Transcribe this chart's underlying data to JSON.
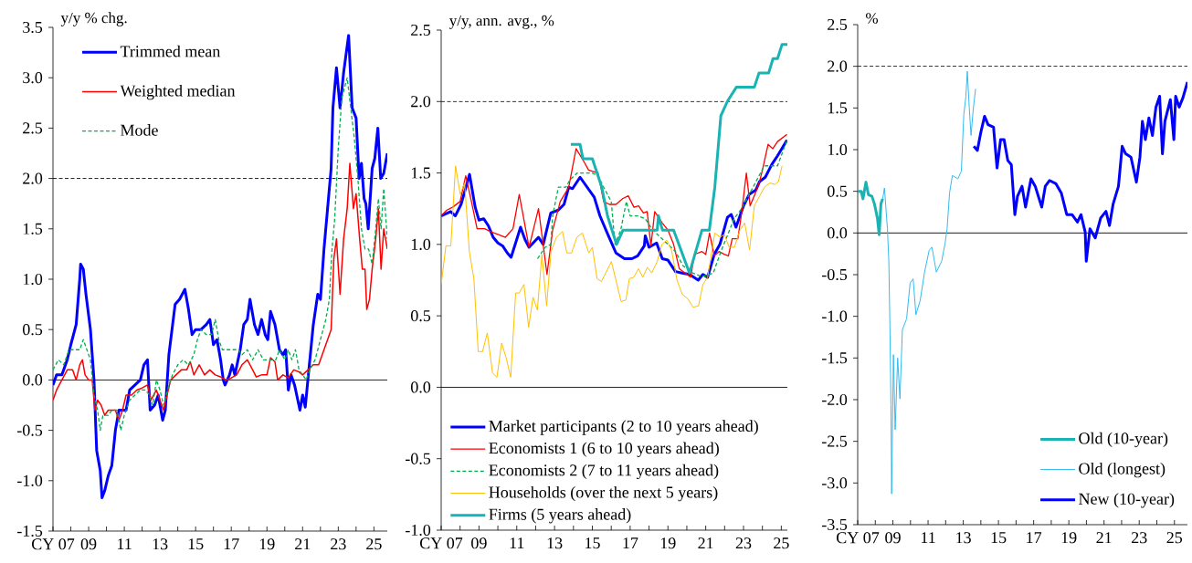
{
  "chart_data": [
    {
      "type": "line",
      "ylabel": "y/y % chg.",
      "legend": "top left",
      "xlim": [
        2007,
        2025.75
      ],
      "xticks": [
        {
          "value": 2007,
          "label": "CY 07"
        },
        {
          "value": 2008,
          "label": null
        },
        {
          "value": 2009,
          "label": "09"
        },
        {
          "value": 2010,
          "label": null
        },
        {
          "value": 2011,
          "label": "11"
        },
        {
          "value": 2012,
          "label": null
        },
        {
          "value": 2013,
          "label": "13"
        },
        {
          "value": 2014,
          "label": null
        },
        {
          "value": 2015,
          "label": "15"
        },
        {
          "value": 2016,
          "label": null
        },
        {
          "value": 2017,
          "label": "17"
        },
        {
          "value": 2018,
          "label": null
        },
        {
          "value": 2019,
          "label": "19"
        },
        {
          "value": 2020,
          "label": null
        },
        {
          "value": 2021,
          "label": "21"
        },
        {
          "value": 2022,
          "label": null
        },
        {
          "value": 2023,
          "label": "23"
        },
        {
          "value": 2024,
          "label": null
        },
        {
          "value": 2025,
          "label": "25"
        }
      ],
      "ylim": [
        -1.5,
        3.5
      ],
      "yticks": [
        {
          "value": -1.5,
          "label": "-1.5"
        },
        {
          "value": -1,
          "label": "-1.0"
        },
        {
          "value": -0.5,
          "label": "-0.5"
        },
        {
          "value": 0,
          "label": "0.0"
        },
        0.5,
        {
          "value": 1,
          "label": "1.0"
        },
        1.5,
        {
          "value": 2,
          "label": "2.0"
        },
        2.5,
        {
          "value": 3,
          "label": "3.0"
        },
        3.5
      ],
      "ref_lines": [
        {
          "axis": "y",
          "value": 2,
          "color": "#000000",
          "line_style": "dashed"
        },
        {
          "axis": "y",
          "value": 0,
          "color": "#000000"
        }
      ],
      "series": [
        {
          "name": "Trimmed mean",
          "color": "#0000ff",
          "x": [
            2007.0,
            2007.2,
            2007.5,
            2007.8,
            2008.0,
            2008.3,
            2008.5,
            2008.55,
            2008.7,
            2008.85,
            2009.1,
            2009.3,
            2009.45,
            2009.65,
            2009.75,
            2009.9,
            2010.1,
            2010.3,
            2010.5,
            2010.7,
            2010.9,
            2011.1,
            2011.3,
            2011.6,
            2011.9,
            2012.1,
            2012.3,
            2012.45,
            2012.7,
            2012.9,
            2013.15,
            2013.3,
            2013.5,
            2013.85,
            2014.1,
            2014.4,
            2014.6,
            2014.8,
            2015.0,
            2015.3,
            2015.6,
            2015.8,
            2016.0,
            2016.2,
            2016.4,
            2016.55,
            2016.65,
            2016.9,
            2017.05,
            2017.2,
            2017.5,
            2017.7,
            2017.9,
            2018.05,
            2018.3,
            2018.5,
            2018.7,
            2018.9,
            2019.05,
            2019.2,
            2019.45,
            2019.7,
            2019.9,
            2020.05,
            2020.2,
            2020.35,
            2020.55,
            2020.85,
            2021.0,
            2021.15,
            2021.35,
            2021.6,
            2021.85,
            2022.0,
            2022.2,
            2022.45,
            2022.6,
            2022.7,
            2022.9,
            2023.1,
            2023.3,
            2023.45,
            2023.58,
            2023.78,
            2024.0,
            2024.17,
            2024.3,
            2024.45,
            2024.55,
            2024.68,
            2024.9,
            2025.05,
            2025.22,
            2025.38,
            2025.55,
            2025.75
          ],
          "values": [
            -0.05,
            0.05,
            0.05,
            0.2,
            0.35,
            0.55,
            1.0,
            1.15,
            1.1,
            0.85,
            0.5,
            0.0,
            -0.7,
            -0.9,
            -1.17,
            -1.1,
            -0.95,
            -0.85,
            -0.5,
            -0.3,
            -0.3,
            -0.3,
            -0.1,
            -0.05,
            0.0,
            0.15,
            0.2,
            -0.3,
            -0.25,
            -0.15,
            -0.4,
            -0.3,
            0.25,
            0.75,
            0.8,
            0.9,
            0.7,
            0.45,
            0.5,
            0.5,
            0.55,
            0.6,
            0.35,
            0.4,
            0.2,
            0.0,
            -0.05,
            0.05,
            0.15,
            0.05,
            0.3,
            0.55,
            0.6,
            0.8,
            0.55,
            0.45,
            0.6,
            0.45,
            0.4,
            0.68,
            0.55,
            0.3,
            0.25,
            0.3,
            -0.1,
            0.05,
            -0.05,
            -0.3,
            -0.15,
            -0.27,
            0.1,
            0.55,
            0.85,
            0.8,
            1.3,
            1.8,
            2.1,
            2.7,
            3.1,
            2.7,
            3.05,
            3.25,
            3.42,
            2.7,
            2.6,
            2.0,
            2.15,
            1.8,
            1.75,
            1.5,
            2.1,
            2.2,
            2.5,
            2.0,
            2.05,
            2.25
          ]
        },
        {
          "name": "Weighted median",
          "color": "#ff0000",
          "x": [
            2007.0,
            2007.2,
            2007.5,
            2007.8,
            2008.1,
            2008.3,
            2008.5,
            2008.65,
            2008.8,
            2009.0,
            2009.2,
            2009.35,
            2009.5,
            2009.7,
            2009.9,
            2010.1,
            2010.3,
            2010.5,
            2010.7,
            2010.9,
            2011.1,
            2011.4,
            2011.7,
            2012.0,
            2012.3,
            2012.5,
            2012.8,
            2013.0,
            2013.2,
            2013.4,
            2013.6,
            2013.9,
            2014.2,
            2014.5,
            2014.7,
            2014.9,
            2015.2,
            2015.5,
            2015.8,
            2016.1,
            2016.4,
            2016.7,
            2017.0,
            2017.3,
            2017.6,
            2017.9,
            2018.2,
            2018.4,
            2018.7,
            2019.0,
            2019.2,
            2019.45,
            2019.6,
            2019.9,
            2020.2,
            2020.5,
            2020.8,
            2021.0,
            2021.3,
            2021.6,
            2021.9,
            2022.1,
            2022.4,
            2022.6,
            2022.75,
            2022.9,
            2023.1,
            2023.3,
            2023.5,
            2023.65,
            2023.85,
            2024.0,
            2024.2,
            2024.35,
            2024.5,
            2024.6,
            2024.75,
            2024.9,
            2025.1,
            2025.25,
            2025.4,
            2025.55,
            2025.75
          ],
          "values": [
            -0.2,
            -0.1,
            0.0,
            0.1,
            0.1,
            0.0,
            0.15,
            0.2,
            0.05,
            0.0,
            0.0,
            -0.3,
            -0.2,
            -0.25,
            -0.35,
            -0.3,
            -0.3,
            -0.3,
            -0.4,
            -0.3,
            -0.15,
            -0.15,
            -0.1,
            -0.08,
            -0.05,
            -0.2,
            -0.1,
            -0.2,
            -0.3,
            -0.15,
            0.0,
            0.05,
            0.1,
            0.1,
            0.18,
            0.05,
            0.15,
            0.05,
            0.1,
            0.05,
            0.03,
            0.0,
            0.02,
            0.05,
            0.15,
            0.2,
            0.1,
            0.03,
            0.05,
            0.05,
            0.22,
            0.18,
            0.0,
            0.05,
            0.02,
            0.1,
            0.08,
            0.05,
            0.1,
            0.15,
            0.15,
            0.25,
            0.4,
            0.5,
            1.2,
            1.4,
            0.85,
            1.4,
            1.7,
            2.15,
            1.7,
            1.85,
            1.4,
            1.1,
            1.1,
            0.7,
            0.8,
            1.1,
            1.4,
            1.7,
            1.1,
            1.5,
            1.3
          ]
        },
        {
          "name": "Mode",
          "color": "#00b050",
          "line_style": "dashed",
          "x": [
            2007.0,
            2007.3,
            2007.6,
            2007.9,
            2008.2,
            2008.5,
            2008.7,
            2008.9,
            2009.1,
            2009.3,
            2009.5,
            2009.65,
            2009.8,
            2010.1,
            2010.3,
            2010.6,
            2010.8,
            2011.0,
            2011.3,
            2011.6,
            2011.9,
            2012.2,
            2012.4,
            2012.6,
            2012.8,
            2013.0,
            2013.2,
            2013.5,
            2013.7,
            2014.0,
            2014.3,
            2014.6,
            2014.9,
            2015.1,
            2015.3,
            2015.6,
            2015.9,
            2016.1,
            2016.3,
            2016.5,
            2017.0,
            2017.4,
            2017.6,
            2017.9,
            2018.2,
            2018.5,
            2018.8,
            2019.5,
            2019.7,
            2020.0,
            2020.2,
            2020.4,
            2020.6,
            2020.8,
            2021.0,
            2021.2,
            2021.4,
            2021.7,
            2022.0,
            2022.3,
            2022.5,
            2022.65,
            2022.8,
            2023.0,
            2023.2,
            2023.5,
            2023.7,
            2023.9,
            2024.1,
            2024.3,
            2024.5,
            2024.7,
            2024.9,
            2025.1,
            2025.25,
            2025.4,
            2025.55,
            2025.75
          ],
          "values": [
            0.1,
            0.2,
            0.15,
            0.3,
            0.3,
            0.3,
            0.4,
            0.3,
            0.2,
            -0.15,
            -0.3,
            -0.5,
            -0.35,
            -0.35,
            -0.3,
            -0.3,
            -0.5,
            -0.35,
            -0.2,
            -0.15,
            -0.1,
            -0.1,
            -0.15,
            -0.25,
            0.0,
            -0.1,
            -0.25,
            -0.05,
            0.05,
            0.15,
            0.2,
            0.15,
            0.25,
            0.4,
            0.5,
            0.45,
            0.45,
            0.6,
            0.4,
            0.3,
            0.3,
            0.3,
            0.25,
            0.3,
            0.2,
            0.3,
            0.2,
            0.2,
            0.3,
            0.2,
            0.3,
            0.2,
            0.3,
            0.1,
            0.05,
            0.0,
            0.1,
            0.2,
            0.4,
            0.6,
            0.8,
            1.3,
            1.6,
            2.3,
            2.8,
            3.0,
            2.7,
            2.4,
            2.0,
            1.5,
            1.3,
            1.3,
            1.15,
            1.5,
            1.8,
            1.5,
            1.9,
            1.4
          ]
        }
      ]
    },
    {
      "type": "line",
      "ylabel": "y/y, ann. avg., %",
      "legend": "bottom",
      "xlim": [
        2007,
        2025.32
      ],
      "xticks": [
        {
          "value": 2007,
          "label": "CY 07"
        },
        {
          "value": 2008,
          "label": null
        },
        {
          "value": 2009,
          "label": "09"
        },
        {
          "value": 2010,
          "label": null
        },
        {
          "value": 2011,
          "label": "11"
        },
        {
          "value": 2012,
          "label": null
        },
        {
          "value": 2013,
          "label": "13"
        },
        {
          "value": 2014,
          "label": null
        },
        {
          "value": 2015,
          "label": "15"
        },
        {
          "value": 2016,
          "label": null
        },
        {
          "value": 2017,
          "label": "17"
        },
        {
          "value": 2018,
          "label": null
        },
        {
          "value": 2019,
          "label": "19"
        },
        {
          "value": 2020,
          "label": null
        },
        {
          "value": 2021,
          "label": "21"
        },
        {
          "value": 2022,
          "label": null
        },
        {
          "value": 2023,
          "label": "23"
        },
        {
          "value": 2024,
          "label": null
        },
        {
          "value": 2025,
          "label": "25"
        }
      ],
      "ylim": [
        -1.0,
        2.5
      ],
      "yticks": [
        {
          "value": -1,
          "label": "-1.0"
        },
        {
          "value": -0.5,
          "label": "-0.5"
        },
        {
          "value": 0,
          "label": "0.0"
        },
        0.5,
        {
          "value": 1,
          "label": "1.0"
        },
        1.5,
        {
          "value": 2,
          "label": "2.0"
        },
        2.5
      ],
      "ref_lines": [
        {
          "axis": "y",
          "value": 2,
          "color": "#000000",
          "line_style": "dashed"
        },
        {
          "axis": "y",
          "value": 0,
          "color": "#000000"
        }
      ],
      "series": [
        {
          "name": "Market participants (2 to 10 years ahead)",
          "color": "#0000ff",
          "x": [
            2007.0,
            2007.5,
            2007.75,
            2008.05,
            2008.5,
            2008.8,
            2009.0,
            2009.25,
            2009.5,
            2009.75,
            2010.0,
            2010.25,
            2010.5,
            2010.7,
            2011.2,
            2011.45,
            2011.65,
            2012.15,
            2012.4,
            2012.8,
            2013.2,
            2013.5,
            2013.75,
            2013.95,
            2014.35,
            2015.1,
            2015.4,
            2015.85,
            2016.25,
            2016.7,
            2017.1,
            2017.4,
            2017.75,
            2017.8,
            2018.0,
            2018.4,
            2018.7,
            2019.0,
            2019.4,
            2019.75,
            2020.15,
            2020.6,
            2020.85,
            2021.1,
            2021.45,
            2021.75,
            2022.15,
            2022.35,
            2022.6,
            2023.0,
            2023.3,
            2023.65,
            2023.85,
            2024.15,
            2024.5,
            2024.8,
            2025.3
          ],
          "values": [
            1.2,
            1.23,
            1.2,
            1.28,
            1.49,
            1.26,
            1.17,
            1.18,
            1.13,
            1.05,
            1.01,
            0.99,
            0.94,
            0.91,
            1.12,
            1.03,
            0.98,
            1.05,
            1.0,
            1.22,
            1.24,
            1.28,
            1.4,
            1.39,
            1.47,
            1.33,
            1.2,
            1.06,
            0.94,
            0.9,
            0.9,
            0.92,
            0.99,
            1.06,
            0.98,
            1.01,
            0.9,
            0.89,
            0.81,
            0.8,
            0.79,
            0.75,
            0.79,
            0.77,
            0.93,
            1.0,
            1.19,
            1.21,
            1.12,
            1.27,
            1.35,
            1.38,
            1.44,
            1.47,
            1.56,
            1.62,
            1.73
          ]
        },
        {
          "name": "Economists 1 (6 to 10 years ahead)",
          "color": "#ff0000",
          "x": [
            2007.0,
            2007.3,
            2007.6,
            2008.0,
            2008.3,
            2008.6,
            2008.9,
            2009.3,
            2009.6,
            2010.0,
            2010.4,
            2010.8,
            2011.13,
            2011.65,
            2012.15,
            2012.6,
            2012.9,
            2013.3,
            2013.75,
            2014.14,
            2014.55,
            2014.8,
            2015.0,
            2015.3,
            2015.6,
            2015.9,
            2016.25,
            2016.6,
            2016.9,
            2017.2,
            2017.45,
            2017.7,
            2017.9,
            2018.1,
            2018.3,
            2018.7,
            2019.0,
            2019.3,
            2019.6,
            2019.9,
            2020.2,
            2020.4,
            2020.8,
            2021.0,
            2021.2,
            2021.45,
            2021.7,
            2022.0,
            2022.2,
            2022.4,
            2022.7,
            2022.9,
            2023.15,
            2023.35,
            2023.6,
            2023.85,
            2024.0,
            2024.3,
            2024.55,
            2024.8,
            2025.3
          ],
          "values": [
            1.2,
            1.24,
            1.26,
            1.3,
            1.48,
            1.3,
            1.11,
            1.11,
            1.09,
            1.07,
            1.05,
            1.11,
            1.35,
            0.98,
            1.25,
            0.79,
            1.1,
            1.3,
            1.4,
            1.67,
            1.58,
            1.52,
            null,
            1.5,
            1.3,
            1.28,
            1.28,
            1.32,
            1.34,
            1.26,
            1.27,
            1.22,
            1.23,
            0.99,
            1.23,
            1.15,
            1.1,
            1.0,
            0.83,
            0.8,
            0.77,
            0.93,
            0.95,
            0.93,
            1.08,
            0.92,
            0.95,
            0.93,
            0.92,
            1.04,
            1.04,
            1.22,
            1.5,
            1.27,
            1.35,
            1.44,
            1.52,
            1.7,
            1.67,
            1.72,
            1.77
          ]
        },
        {
          "name": "Economists 2 (7 to 11 years ahead)",
          "color": "#00b050",
          "line_style": "dashed",
          "x": [
            2012.1,
            2012.5,
            2012.8,
            2012.9,
            2013.2,
            2013.6,
            2013.8,
            2014.2,
            2015.0,
            2015.3,
            2015.6,
            2016.0,
            2016.2,
            2016.5,
            2016.8,
            2017.0,
            2017.4,
            2017.8,
            2018.2,
            2018.6,
            2019.0,
            2019.4,
            2019.8,
            2020.3,
            2020.7,
            2021.0,
            2021.4,
            2021.8,
            2022.2,
            2022.5,
            2022.9,
            2023.3,
            2023.7,
            2024.1,
            2024.5,
            2024.8,
            2025.3
          ],
          "values": [
            0.9,
            0.98,
            1.0,
            1.2,
            1.4,
            1.4,
            1.45,
            1.5,
            1.5,
            1.48,
            1.4,
            1.3,
            1.0,
            1.1,
            1.3,
            1.2,
            1.2,
            1.18,
            1.1,
            1.05,
            1.0,
            0.95,
            0.85,
            0.8,
            0.78,
            0.78,
            0.8,
            0.95,
            1.08,
            1.18,
            1.25,
            1.35,
            1.45,
            1.55,
            1.55,
            1.55,
            1.73
          ]
        },
        {
          "name": "Households (over the next 5 years)",
          "color": "#ffc000",
          "x": [
            2007.0,
            2007.25,
            2007.51,
            2007.76,
            2008.01,
            2008.24,
            2008.49,
            2008.73,
            2008.96,
            2009.19,
            2009.44,
            2009.72,
            2009.95,
            2010.2,
            2010.45,
            2010.68,
            2010.94,
            2011.13,
            2011.38,
            2011.63,
            2011.86,
            2012.09,
            2012.33,
            2012.58,
            2012.81,
            2013.1,
            2013.42,
            2013.65,
            2013.9,
            2014.18,
            2014.47,
            2014.81,
            2015.0,
            2015.25,
            2015.48,
            2016.01,
            2016.52,
            2016.77,
            2016.96,
            2017.19,
            2017.44,
            2017.67,
            2017.91,
            2018.14,
            2018.43,
            2018.68,
            2018.94,
            2019.19,
            2019.48,
            2019.76,
            2020.05,
            2020.33,
            2020.62,
            2020.85,
            2021.1,
            2021.48,
            2021.76,
            2021.99,
            2022.24,
            2022.52,
            2022.81,
            2023.06,
            2023.32,
            2023.57,
            2023.86,
            2024.1,
            2024.39,
            2024.66,
            2024.85,
            2025.04
          ],
          "values": [
            0.72,
            0.99,
            0.99,
            1.55,
            1.35,
            1.43,
            0.95,
            0.76,
            0.25,
            0.25,
            0.38,
            0.1,
            0.07,
            0.31,
            0.2,
            0.07,
            0.66,
            0.66,
            0.72,
            0.42,
            0.63,
            0.54,
            0.93,
            0.57,
            0.95,
            1.05,
            1.09,
            0.94,
            0.94,
            1.05,
            1.08,
            0.94,
            0.98,
            0.76,
            0.74,
            0.88,
            0.6,
            0.61,
            0.76,
            0.77,
            0.83,
            0.77,
            0.84,
            0.8,
            0.88,
            1.0,
            1.03,
            0.96,
            0.75,
            0.65,
            0.62,
            0.56,
            0.57,
            0.72,
            0.77,
            1.08,
            1.05,
            1.07,
            0.98,
            0.98,
            1.1,
            1.15,
            0.96,
            1.27,
            1.34,
            1.4,
            1.43,
            1.42,
            1.44,
            1.55
          ]
        },
        {
          "name": "Firms (5 years ahead)",
          "color": "#1ab3b3",
          "x": [
            2013.86,
            2014.35,
            2014.5,
            2015.0,
            2015.5,
            2015.8,
            2016.28,
            2016.62,
            2018.43,
            2018.5,
            2018.71,
            2019.3,
            2020.14,
            2020.8,
            2021.19,
            2021.48,
            2021.8,
            2022.14,
            2022.62,
            2023.57,
            2023.82,
            2024.33,
            2024.56,
            2024.8,
            2025.04,
            2025.32
          ],
          "values": [
            1.7,
            1.7,
            1.6,
            1.6,
            1.4,
            1.2,
            1.0,
            1.1,
            1.1,
            1.2,
            1.1,
            1.1,
            0.8,
            1.1,
            1.1,
            1.4,
            1.9,
            2.0,
            2.1,
            2.1,
            2.2,
            2.2,
            2.3,
            2.3,
            2.4,
            2.4
          ]
        }
      ]
    },
    {
      "type": "line",
      "ylabel": "%",
      "legend": "bottom right",
      "xlim": [
        2007,
        2025.74
      ],
      "xticks": [
        {
          "value": 2007,
          "label": "CY 07"
        },
        {
          "value": 2008,
          "label": null
        },
        {
          "value": 2009,
          "label": "09"
        },
        {
          "value": 2010,
          "label": null
        },
        {
          "value": 2011,
          "label": "11"
        },
        {
          "value": 2012,
          "label": null
        },
        {
          "value": 2013,
          "label": "13"
        },
        {
          "value": 2014,
          "label": null
        },
        {
          "value": 2015,
          "label": "15"
        },
        {
          "value": 2016,
          "label": null
        },
        {
          "value": 2017,
          "label": "17"
        },
        {
          "value": 2018,
          "label": null
        },
        {
          "value": 2019,
          "label": "19"
        },
        {
          "value": 2020,
          "label": null
        },
        {
          "value": 2021,
          "label": "21"
        },
        {
          "value": 2022,
          "label": null
        },
        {
          "value": 2023,
          "label": "23"
        },
        {
          "value": 2024,
          "label": null
        },
        {
          "value": 2025,
          "label": "25"
        }
      ],
      "ylim": [
        -3.5,
        2.5
      ],
      "yticks": [
        -3.5,
        {
          "value": -3,
          "label": "-3.0"
        },
        -2.5,
        {
          "value": -2,
          "label": "-2.0"
        },
        -1.5,
        {
          "value": -1,
          "label": "-1.0"
        },
        -0.5,
        {
          "value": 0,
          "label": "0.0"
        },
        0.5,
        {
          "value": 1,
          "label": "1.0"
        },
        1.5,
        {
          "value": 2,
          "label": "2.0"
        },
        2.5
      ],
      "ref_lines": [
        {
          "axis": "y",
          "value": 2,
          "color": "#000000",
          "line_style": "dashed"
        },
        {
          "axis": "y",
          "value": 0,
          "color": "#000000"
        }
      ],
      "series": [
        {
          "name": "Old (10-year)",
          "color": "#1ab3b3",
          "x": [
            2007.0,
            2007.2,
            2007.3,
            2007.47,
            2007.61,
            2007.81,
            2007.95,
            2008.12,
            2008.22,
            2008.32,
            2008.42
          ],
          "values": [
            0.5,
            0.5,
            0.41,
            0.61,
            0.46,
            0.44,
            0.35,
            0.18,
            -0.02,
            0.35,
            0.41
          ]
        },
        {
          "name": "Old (longest)",
          "color": "#33bbee",
          "x": [
            2008.42,
            2008.52,
            2008.69,
            2008.77,
            2008.83,
            2008.89,
            2008.93,
            2009.03,
            2009.13,
            2009.27,
            2009.4,
            2009.54,
            2009.78,
            2009.98,
            2010.15,
            2010.31,
            2010.55,
            2010.8,
            2011.06,
            2011.22,
            2011.47,
            2011.77,
            2011.97,
            2012.08,
            2012.22,
            2012.38,
            2012.69,
            2012.89,
            2013.03,
            2013.15,
            2013.23,
            2013.34,
            2013.44,
            2013.56,
            2013.7
          ],
          "values": [
            0.41,
            0.54,
            0.05,
            -0.34,
            -1.11,
            -2.06,
            -3.13,
            -1.46,
            -2.36,
            -1.5,
            -1.99,
            -1.16,
            -1.03,
            -0.6,
            -0.55,
            -0.98,
            -0.81,
            -0.47,
            -0.21,
            -0.17,
            -0.47,
            -0.34,
            -0.12,
            0.05,
            0.48,
            0.69,
            0.65,
            0.74,
            1.42,
            1.64,
            1.94,
            1.51,
            1.17,
            1.47,
            1.73
          ]
        },
        {
          "name": "New (10-year)",
          "color": "#0000ff",
          "x": [
            2013.6,
            2013.8,
            2014.0,
            2014.21,
            2014.41,
            2014.72,
            2014.92,
            2015.12,
            2015.32,
            2015.53,
            2015.73,
            2015.93,
            2016.08,
            2016.34,
            2016.54,
            2016.85,
            2017.09,
            2017.46,
            2017.66,
            2017.9,
            2018.27,
            2018.57,
            2018.88,
            2019.18,
            2019.49,
            2019.69,
            2019.93,
            2019.99,
            2020.2,
            2020.5,
            2020.81,
            2021.11,
            2021.31,
            2021.52,
            2021.82,
            2022.03,
            2022.23,
            2022.53,
            2022.84,
            2023.04,
            2023.18,
            2023.35,
            2023.55,
            2023.75,
            2023.95,
            2024.16,
            2024.32,
            2024.46,
            2024.77,
            2024.97,
            2025.07,
            2025.27,
            2025.48,
            2025.74
          ],
          "values": [
            1.04,
            0.99,
            1.21,
            1.4,
            1.3,
            1.27,
            0.78,
            1.12,
            1.12,
            0.87,
            0.82,
            0.22,
            0.44,
            0.56,
            0.31,
            0.65,
            0.56,
            0.31,
            0.56,
            0.63,
            0.59,
            0.48,
            0.22,
            0.22,
            0.13,
            0.22,
            0.01,
            -0.34,
            0.05,
            -0.06,
            0.18,
            0.26,
            0.09,
            0.35,
            0.56,
            1.04,
            0.95,
            0.91,
            0.61,
            0.91,
            1.34,
            1.12,
            1.38,
            1.17,
            1.51,
            1.64,
            0.95,
            1.34,
            1.6,
            1.12,
            1.64,
            1.51,
            1.62,
            1.81
          ]
        }
      ]
    }
  ]
}
